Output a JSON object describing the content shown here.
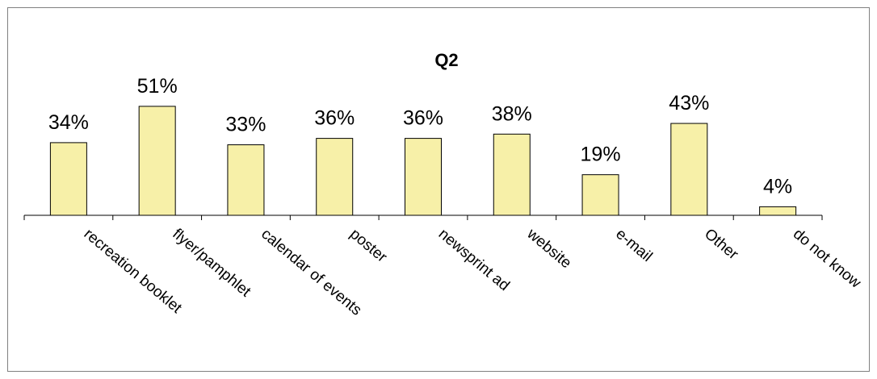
{
  "chart_data": {
    "type": "bar",
    "title": "Q2",
    "xlabel": "",
    "ylabel": "",
    "categories": [
      "recreation booklet",
      "flyer/pamphlet",
      "calendar of events",
      "poster",
      "newsprint ad",
      "website",
      "e-mail",
      "Other",
      "do not know"
    ],
    "values": [
      34,
      51,
      33,
      36,
      36,
      38,
      19,
      43,
      4
    ],
    "data_labels": [
      "34%",
      "51%",
      "33%",
      "36%",
      "36%",
      "38%",
      "19%",
      "43%",
      "4%"
    ],
    "ylim": [
      0,
      100
    ],
    "unit": "%",
    "grid": false,
    "legend": "none",
    "colors": {
      "bar_fill": "#f7f0a8",
      "bar_stroke": "#000000",
      "axis": "#000000",
      "frame": "#808080"
    }
  }
}
